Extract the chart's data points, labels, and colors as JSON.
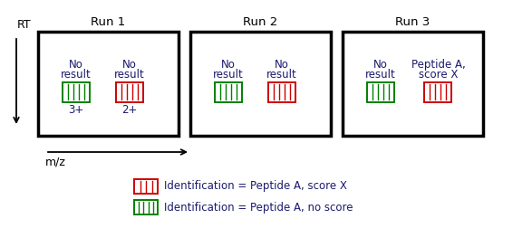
{
  "title_run1": "Run 1",
  "title_run2": "Run 2",
  "title_run3": "Run 3",
  "rt_label": "RT",
  "mz_label": "m/z",
  "box_color": "#000000",
  "green_color": "#008000",
  "red_color": "#cc0000",
  "label_red": "Identification = Peptide A, score X",
  "label_green": "Identification = Peptide A, no score",
  "bg_color": "#ffffff",
  "font_color": "#1a1a6e",
  "font_size": 8.5,
  "title_font_size": 9.5,
  "fig_width": 5.87,
  "fig_height": 2.63,
  "dpi": 100
}
